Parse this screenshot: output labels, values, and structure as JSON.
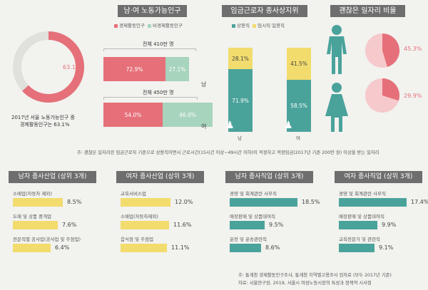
{
  "colors": {
    "pink": "#e57079",
    "mint": "#a7d4bd",
    "yellow": "#f2dc6d",
    "teal": "#4aa39b",
    "header": "#6e6e6e",
    "light_pink": "#f6c9cc"
  },
  "top_headers": {
    "gender_labor": "남·여 노동가능인구",
    "employment": "임금근로자 종사상지위",
    "good_jobs": "괜찮은 일자리 비율"
  },
  "donut": {
    "percent": "63.1%",
    "value": 63.1,
    "caption_line1": "2017년 서울 노동가능인구 중",
    "caption_line2": "경제활동인구는 63.1%"
  },
  "labor_legend": {
    "active": "경제활동인구",
    "inactive": "비경제활동인구"
  },
  "labor_bars": [
    {
      "gender": "남",
      "total": "전체 410만 명",
      "active_pct": "72.9%",
      "inactive_pct": "27.1%",
      "active": 72.9,
      "inactive": 27.1
    },
    {
      "gender": "여",
      "total": "전체 450만 명",
      "active_pct": "54.0%",
      "inactive_pct": "46.0%",
      "active": 54.0,
      "inactive": 46.0
    }
  ],
  "emp_legend": {
    "regular": "상용직",
    "temp": "임시직·일용직"
  },
  "emp_bars": [
    {
      "gender": "남",
      "regular_pct": "71.9%",
      "temp_pct": "28.1%",
      "regular": 71.9,
      "temp": 28.1
    },
    {
      "gender": "여",
      "regular_pct": "58.5%",
      "temp_pct": "41.5%",
      "regular": 58.5,
      "temp": 41.5
    }
  ],
  "good_jobs": [
    {
      "gender": "남",
      "percent": "45.3%",
      "value": 45.3
    },
    {
      "gender": "여",
      "percent": "29.9%",
      "value": 29.9
    }
  ],
  "footnote": "주: 괜찮은 일자리란 임금근로자 기준으로 상용직이면서 근로시간(15시간 이상~49시간 이하)이 적정하고 적정임금(2017년 기준 200만 원) 이상을 받는 일자리",
  "industry_sections": [
    {
      "title": "남자 종사산업 (상위 3개)",
      "color": "#f2dc6d",
      "items": [
        {
          "label": "소매업(자동차 제외)",
          "pct": "8.5%",
          "value": 8.5
        },
        {
          "label": "도매 및 상품 중개업",
          "pct": "7.6%",
          "value": 7.6
        },
        {
          "label": "전문직별 공사업(공사업 및 주점업)",
          "pct": "6.4%",
          "value": 6.4
        }
      ]
    },
    {
      "title": "여자 종사산업 (상위 3개)",
      "color": "#f2dc6d",
      "items": [
        {
          "label": "교육서비스업",
          "pct": "12.0%",
          "value": 12.0
        },
        {
          "label": "소매업(자동차제외)",
          "pct": "11.6%",
          "value": 11.6
        },
        {
          "label": "음식점 및 주점업",
          "pct": "11.1%",
          "value": 11.1
        }
      ]
    },
    {
      "title": "남자 종사직업 (상위 3개)",
      "color": "#4aa39b",
      "items": [
        {
          "label": "경영 및 회계관련 사무직",
          "pct": "18.5%",
          "value": 18.5
        },
        {
          "label": "매장판매 및 상품대여직",
          "pct": "9.5%",
          "value": 9.5
        },
        {
          "label": "운전 및 운송관련직",
          "pct": "8.6%",
          "value": 8.6
        }
      ]
    },
    {
      "title": "여자 종사직업 (상위 3개)",
      "color": "#4aa39b",
      "items": [
        {
          "label": "경영 및 회계관련 사무직",
          "pct": "17.4%",
          "value": 17.4
        },
        {
          "label": "매장판매 및 상품대여직",
          "pct": "9.9%",
          "value": 9.9
        },
        {
          "label": "교육전문가 및 관련직",
          "pct": "9.1%",
          "value": 9.1
        }
      ]
    }
  ],
  "source_line1": "주: 통계청 경제활동인구조사, 통계청 지역별고용조사 원자료 (모두 2017년 기준)",
  "source_line2": "자료: 서울연구원, 2019, 서울시 여성노동시장의 특성과 정책적 시사점"
}
